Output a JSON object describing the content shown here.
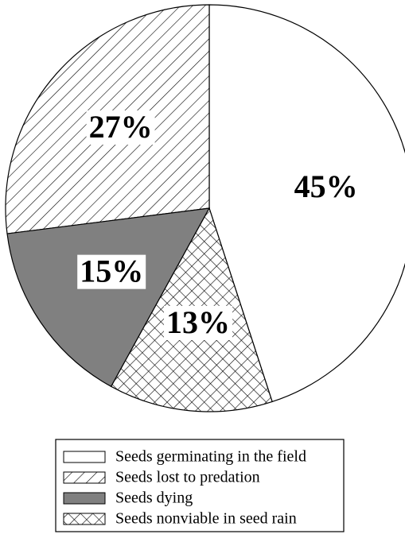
{
  "chart_data": {
    "type": "pie",
    "categories": [
      "Seeds germinating in the field",
      "Seeds lost to predation",
      "Seeds dying",
      "Seeds nonviable in seed rain"
    ],
    "values": [
      45,
      27,
      15,
      13
    ],
    "value_labels": [
      "45%",
      "27%",
      "15%",
      "13%"
    ],
    "colors": [
      "#ffffff",
      "#ffffff",
      "#808080",
      "#ffffff"
    ],
    "patterns": [
      "none",
      "diagonal",
      "none",
      "crosshatch"
    ],
    "start_angle": 162,
    "counterclock": true,
    "legend": "bottom"
  }
}
